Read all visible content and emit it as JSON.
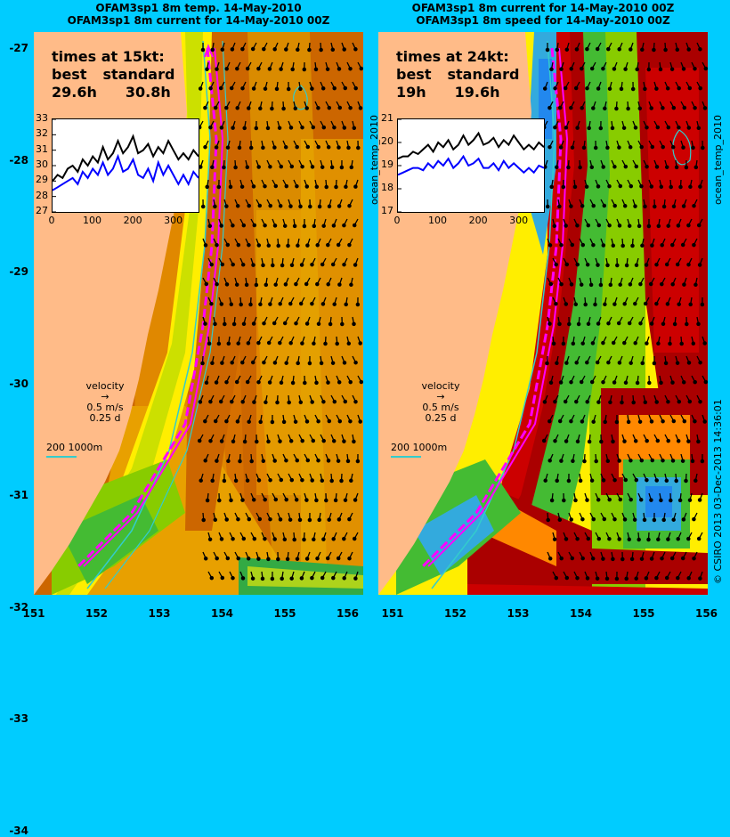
{
  "left_panel": {
    "title_line1": "OFAM3sp1 8m temp. 14-May-2010",
    "title_line2": "OFAM3sp1 8m current for 14-May-2010 00Z",
    "times_header": "times at 15kt:",
    "col1_label": "best",
    "col2_label": "standard",
    "col1_value": "29.6h",
    "col2_value": "30.8h",
    "side_label": "ocean_temp_2010",
    "inset": {
      "y_ticks": [
        "33",
        "32",
        "31",
        "30",
        "29",
        "28",
        "27"
      ],
      "x_ticks": [
        "0",
        "100",
        "200",
        "300"
      ],
      "series_best": [
        29.0,
        29.4,
        29.2,
        29.8,
        30.0,
        29.6,
        30.4,
        30.0,
        30.6,
        30.2,
        31.2,
        30.4,
        30.8,
        31.6,
        30.8,
        31.2,
        31.9,
        30.8,
        31.0,
        31.4,
        30.6,
        31.2,
        30.8,
        31.6,
        31.0,
        30.4,
        30.8,
        30.4,
        31.0,
        30.6
      ],
      "series_standard": [
        28.4,
        28.6,
        28.8,
        29.0,
        29.2,
        28.8,
        29.6,
        29.2,
        29.8,
        29.4,
        30.2,
        29.4,
        29.8,
        30.6,
        29.6,
        29.8,
        30.4,
        29.4,
        29.2,
        29.8,
        29.0,
        30.2,
        29.4,
        30.0,
        29.4,
        28.8,
        29.4,
        28.8,
        29.6,
        29.2
      ]
    },
    "legend_title": "velocity",
    "legend_speed": "0.5 m/s",
    "legend_time": "0.25 d",
    "scale_label": "200  1000m"
  },
  "right_panel": {
    "title_line1": "OFAM3sp1 8m current for 14-May-2010 00Z",
    "title_line2": "OFAM3sp1 8m speed for 14-May-2010 00Z",
    "times_header": "times at 24kt:",
    "col1_label": "best",
    "col2_label": "standard",
    "col1_value": "19h",
    "col2_value": "19.6h",
    "side_label": "ocean_temp_2010",
    "inset": {
      "y_ticks": [
        "21",
        "20",
        "19",
        "18",
        "17"
      ],
      "x_ticks": [
        "0",
        "100",
        "200",
        "300"
      ],
      "series_best": [
        19.3,
        19.4,
        19.4,
        19.6,
        19.5,
        19.7,
        19.9,
        19.6,
        20.0,
        19.8,
        20.1,
        19.7,
        19.9,
        20.3,
        19.9,
        20.1,
        20.4,
        19.9,
        20.0,
        20.2,
        19.8,
        20.1,
        19.9,
        20.3,
        20.0,
        19.7,
        19.9,
        19.7,
        20.0,
        19.8
      ],
      "series_standard": [
        18.6,
        18.7,
        18.8,
        18.9,
        18.9,
        18.8,
        19.1,
        18.9,
        19.2,
        19.0,
        19.3,
        18.9,
        19.1,
        19.4,
        19.0,
        19.1,
        19.3,
        18.9,
        18.9,
        19.1,
        18.8,
        19.2,
        18.9,
        19.1,
        18.9,
        18.7,
        18.9,
        18.7,
        19.0,
        18.9
      ]
    },
    "legend_title": "velocity",
    "legend_speed": "0.5 m/s",
    "legend_time": "0.25 d",
    "scale_label": "200  1000m"
  },
  "y_axis_labels": [
    "-27",
    "-28",
    "-29",
    "-30",
    "-31",
    "-32",
    "-33",
    "-34"
  ],
  "x_axis_labels": [
    "151",
    "152",
    "153",
    "154",
    "155",
    "156"
  ],
  "credit": "© CSIRO 2013   03-Dec-2013 14:36:01",
  "colors": {
    "background": "#00ccff",
    "land": "#ffbb88",
    "warm": "#cc6600",
    "route": "#ff00ff",
    "series_best": "#000000",
    "series_standard": "#0000ff",
    "isobath": "#33cccc"
  }
}
